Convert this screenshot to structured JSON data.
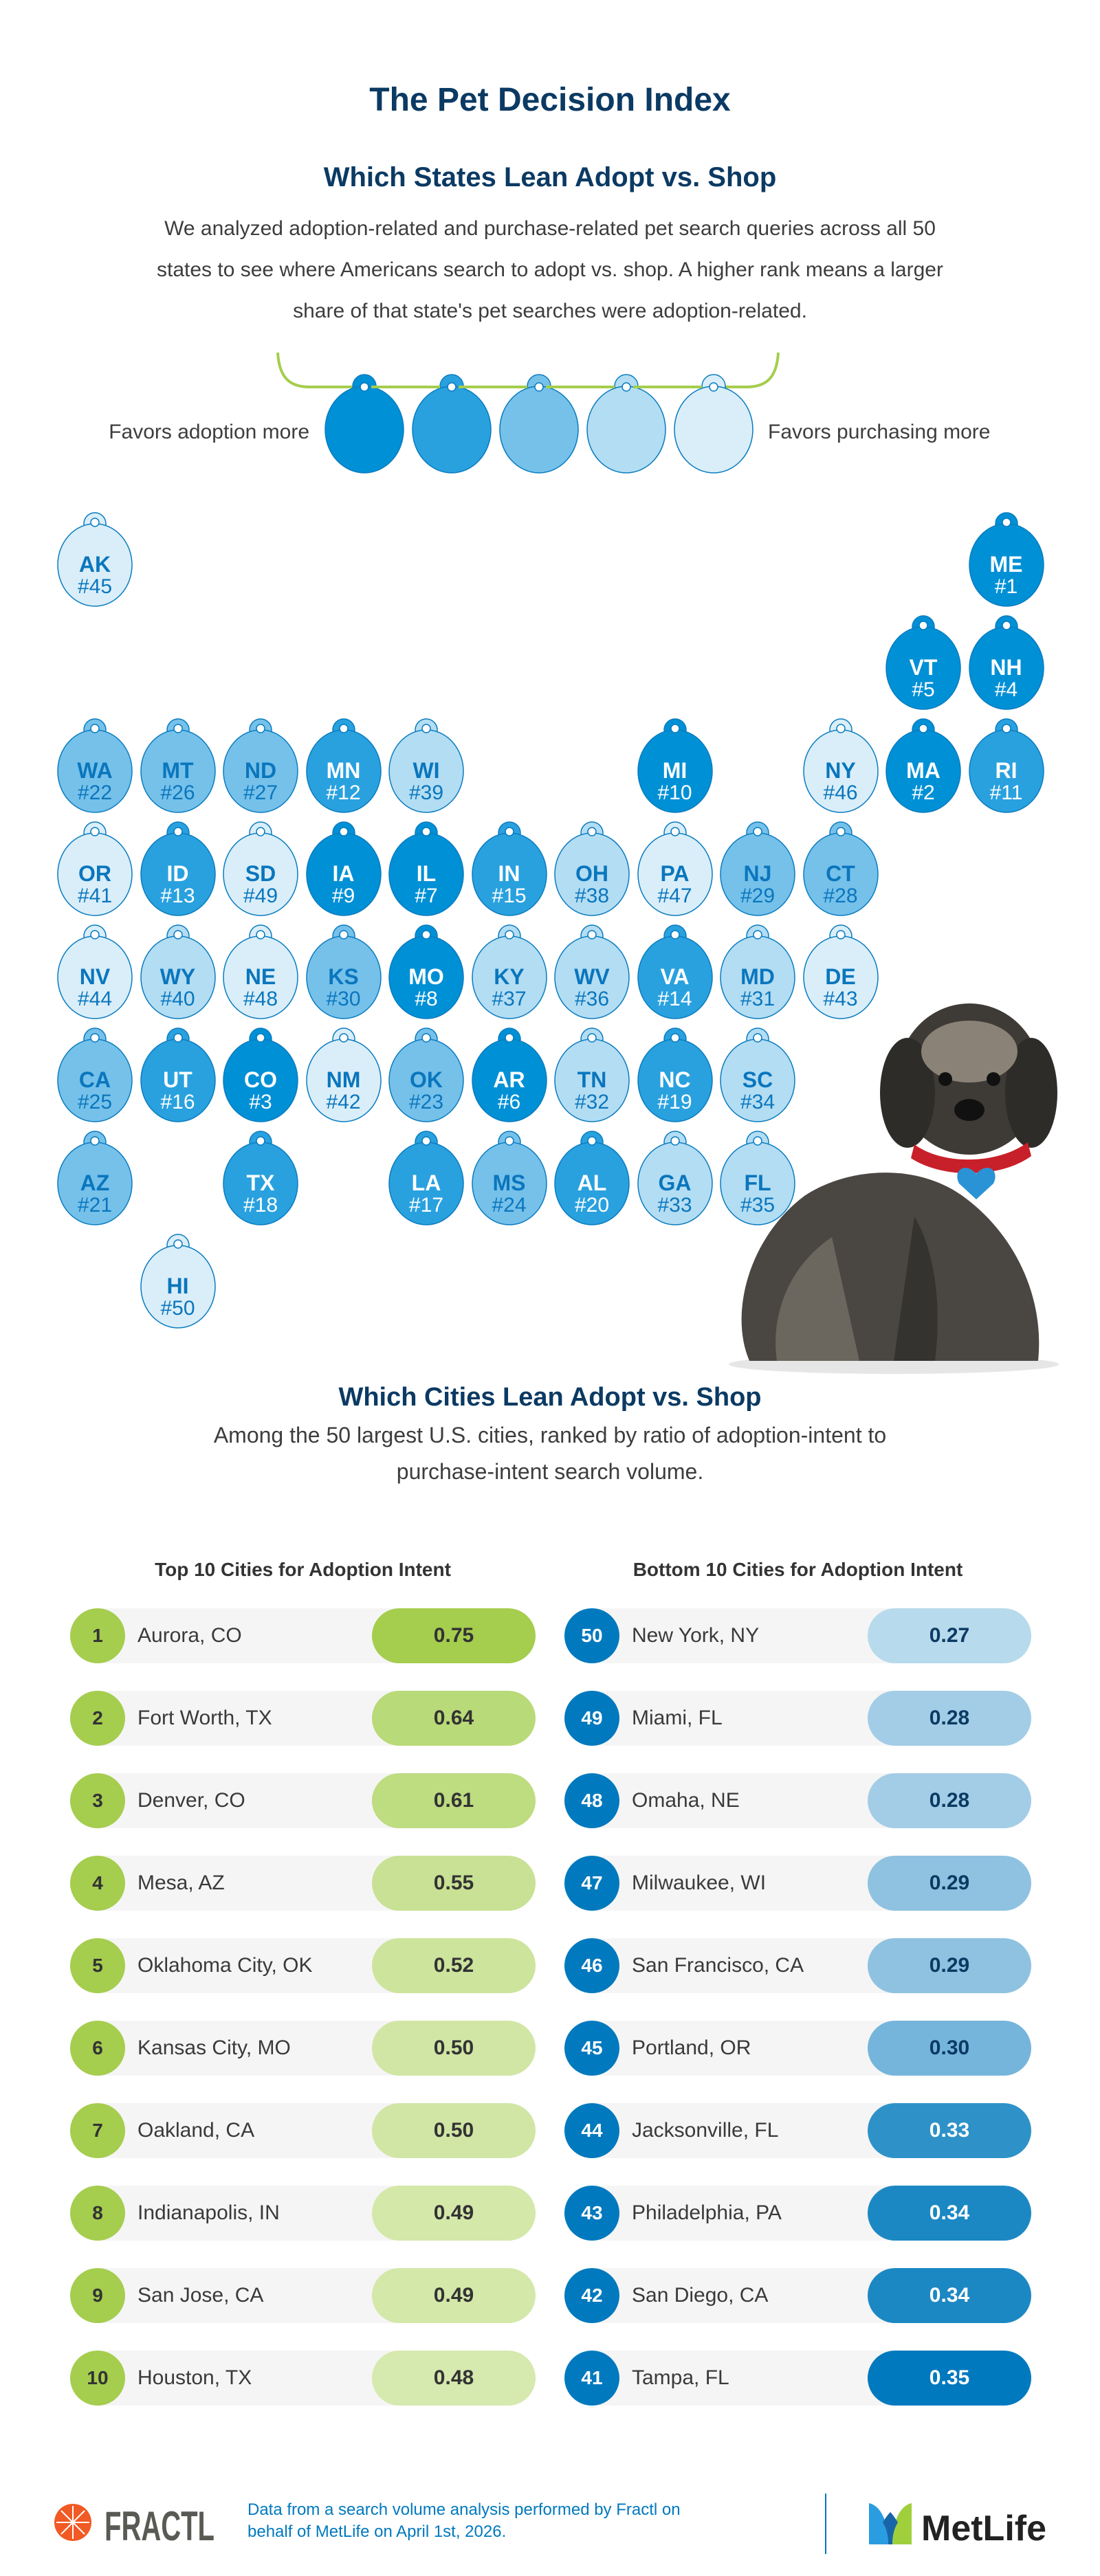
{
  "header": {
    "title": "The Pet Decision Index",
    "states_title": "Which States Lean Adopt vs. Shop",
    "states_description": [
      "We analyzed adoption-related and purchase-related pet search queries across all 50",
      "states to see where Americans search to adopt vs. shop. A higher rank means a larger",
      "share of that state's pet searches were adoption-related."
    ]
  },
  "legend": {
    "left_label": "Favors adoption more",
    "right_label": "Favors purchasing more",
    "colors": [
      "#0090d6",
      "#29a1df",
      "#75c1ea",
      "#b3ddf3",
      "#d9eef9"
    ],
    "rope_color": "#a5cd4e",
    "stroke_color": "#0a7cc0"
  },
  "states": [
    {
      "abbr": "AK",
      "rank": "#45",
      "row": 0,
      "col": 0
    },
    {
      "abbr": "ME",
      "rank": "#1",
      "row": 0,
      "col": 11
    },
    {
      "abbr": "VT",
      "rank": "#5",
      "row": 1,
      "col": 10
    },
    {
      "abbr": "NH",
      "rank": "#4",
      "row": 1,
      "col": 11
    },
    {
      "abbr": "WA",
      "rank": "#22",
      "row": 2,
      "col": 0
    },
    {
      "abbr": "MT",
      "rank": "#26",
      "row": 2,
      "col": 1
    },
    {
      "abbr": "ND",
      "rank": "#27",
      "row": 2,
      "col": 2
    },
    {
      "abbr": "MN",
      "rank": "#12",
      "row": 2,
      "col": 3
    },
    {
      "abbr": "WI",
      "rank": "#39",
      "row": 2,
      "col": 4
    },
    {
      "abbr": "MI",
      "rank": "#10",
      "row": 2,
      "col": 7
    },
    {
      "abbr": "NY",
      "rank": "#46",
      "row": 2,
      "col": 9
    },
    {
      "abbr": "MA",
      "rank": "#2",
      "row": 2,
      "col": 10
    },
    {
      "abbr": "RI",
      "rank": "#11",
      "row": 2,
      "col": 11
    },
    {
      "abbr": "OR",
      "rank": "#41",
      "row": 3,
      "col": 0
    },
    {
      "abbr": "ID",
      "rank": "#13",
      "row": 3,
      "col": 1
    },
    {
      "abbr": "SD",
      "rank": "#49",
      "row": 3,
      "col": 2
    },
    {
      "abbr": "IA",
      "rank": "#9",
      "row": 3,
      "col": 3
    },
    {
      "abbr": "IL",
      "rank": "#7",
      "row": 3,
      "col": 4
    },
    {
      "abbr": "IN",
      "rank": "#15",
      "row": 3,
      "col": 5
    },
    {
      "abbr": "OH",
      "rank": "#38",
      "row": 3,
      "col": 6
    },
    {
      "abbr": "PA",
      "rank": "#47",
      "row": 3,
      "col": 7
    },
    {
      "abbr": "NJ",
      "rank": "#29",
      "row": 3,
      "col": 8
    },
    {
      "abbr": "CT",
      "rank": "#28",
      "row": 3,
      "col": 9
    },
    {
      "abbr": "NV",
      "rank": "#44",
      "row": 4,
      "col": 0
    },
    {
      "abbr": "WY",
      "rank": "#40",
      "row": 4,
      "col": 1
    },
    {
      "abbr": "NE",
      "rank": "#48",
      "row": 4,
      "col": 2
    },
    {
      "abbr": "KS",
      "rank": "#30",
      "row": 4,
      "col": 3
    },
    {
      "abbr": "MO",
      "rank": "#8",
      "row": 4,
      "col": 4
    },
    {
      "abbr": "KY",
      "rank": "#37",
      "row": 4,
      "col": 5
    },
    {
      "abbr": "WV",
      "rank": "#36",
      "row": 4,
      "col": 6
    },
    {
      "abbr": "VA",
      "rank": "#14",
      "row": 4,
      "col": 7
    },
    {
      "abbr": "MD",
      "rank": "#31",
      "row": 4,
      "col": 8
    },
    {
      "abbr": "DE",
      "rank": "#43",
      "row": 4,
      "col": 9
    },
    {
      "abbr": "CA",
      "rank": "#25",
      "row": 5,
      "col": 0
    },
    {
      "abbr": "UT",
      "rank": "#16",
      "row": 5,
      "col": 1
    },
    {
      "abbr": "CO",
      "rank": "#3",
      "row": 5,
      "col": 2
    },
    {
      "abbr": "NM",
      "rank": "#42",
      "row": 5,
      "col": 3
    },
    {
      "abbr": "OK",
      "rank": "#23",
      "row": 5,
      "col": 4
    },
    {
      "abbr": "AR",
      "rank": "#6",
      "row": 5,
      "col": 5
    },
    {
      "abbr": "TN",
      "rank": "#32",
      "row": 5,
      "col": 6
    },
    {
      "abbr": "NC",
      "rank": "#19",
      "row": 5,
      "col": 7
    },
    {
      "abbr": "SC",
      "rank": "#34",
      "row": 5,
      "col": 8
    },
    {
      "abbr": "AZ",
      "rank": "#21",
      "row": 6,
      "col": 0
    },
    {
      "abbr": "TX",
      "rank": "#18",
      "row": 6,
      "col": 2
    },
    {
      "abbr": "LA",
      "rank": "#17",
      "row": 6,
      "col": 4
    },
    {
      "abbr": "MS",
      "rank": "#24",
      "row": 6,
      "col": 5
    },
    {
      "abbr": "AL",
      "rank": "#20",
      "row": 6,
      "col": 6
    },
    {
      "abbr": "GA",
      "rank": "#33",
      "row": 6,
      "col": 7
    },
    {
      "abbr": "FL",
      "rank": "#35",
      "row": 6,
      "col": 8
    },
    {
      "abbr": "HI",
      "rank": "#50",
      "row": 7,
      "col": 1
    }
  ],
  "cities": {
    "title": "Which Cities Lean Adopt vs. Shop",
    "description": [
      "Among the 50 largest U.S. cities, ranked by ratio of adoption-intent to",
      "purchase-intent search volume."
    ],
    "top_title": "Top 10 Cities for Adoption Intent",
    "bottom_title": "Bottom 10 Cities for Adoption Intent",
    "top_rank_color": "#a5cd4e",
    "bottom_rank_color": "#0079be",
    "top": [
      {
        "rank": "1",
        "city": "Aurora, CO",
        "value": "0.75",
        "color": "#a5cd4e"
      },
      {
        "rank": "2",
        "city": "Fort Worth, TX",
        "value": "0.64",
        "color": "#b9da78"
      },
      {
        "rank": "3",
        "city": "Denver, CO",
        "value": "0.61",
        "color": "#bedc80"
      },
      {
        "rank": "4",
        "city": "Mesa, AZ",
        "value": "0.55",
        "color": "#c8e194"
      },
      {
        "rank": "5",
        "city": "Oklahoma City, OK",
        "value": "0.52",
        "color": "#cde49d"
      },
      {
        "rank": "6",
        "city": "Kansas City, MO",
        "value": "0.50",
        "color": "#d1e6a5"
      },
      {
        "rank": "7",
        "city": "Oakland, CA",
        "value": "0.50",
        "color": "#d1e6a5"
      },
      {
        "rank": "8",
        "city": "Indianapolis, IN",
        "value": "0.49",
        "color": "#d4e8aa"
      },
      {
        "rank": "9",
        "city": "San Jose, CA",
        "value": "0.49",
        "color": "#d4e8aa"
      },
      {
        "rank": "10",
        "city": "Houston, TX",
        "value": "0.48",
        "color": "#d6e9ae"
      }
    ],
    "bottom": [
      {
        "rank": "50",
        "city": "New York, NY",
        "value": "0.27",
        "color": "#b7daec"
      },
      {
        "rank": "49",
        "city": "Miami, FL",
        "value": "0.28",
        "color": "#a3cde6"
      },
      {
        "rank": "48",
        "city": "Omaha, NE",
        "value": "0.28",
        "color": "#a3cde6"
      },
      {
        "rank": "47",
        "city": "Milwaukee, WI",
        "value": "0.29",
        "color": "#8ec2e0"
      },
      {
        "rank": "46",
        "city": "San Francisco, CA",
        "value": "0.29",
        "color": "#8ec2e0"
      },
      {
        "rank": "45",
        "city": "Portland, OR",
        "value": "0.30",
        "color": "#76b5db"
      },
      {
        "rank": "44",
        "city": "Jacksonville, FL",
        "value": "0.33",
        "color": "#2e92c8"
      },
      {
        "rank": "43",
        "city": "Philadelphia, PA",
        "value": "0.34",
        "color": "#1c88c3"
      },
      {
        "rank": "42",
        "city": "San Diego, CA",
        "value": "0.34",
        "color": "#1c88c3"
      },
      {
        "rank": "41",
        "city": "Tampa, FL",
        "value": "0.35",
        "color": "#0079be"
      }
    ]
  },
  "footer": {
    "fractl_logo": "FRACTL",
    "source_lines": [
      "Data from a search volume analysis performed by Fractl on",
      "behalf of MetLife on April 1st, 2026."
    ],
    "metlife_logo": "MetLife"
  }
}
